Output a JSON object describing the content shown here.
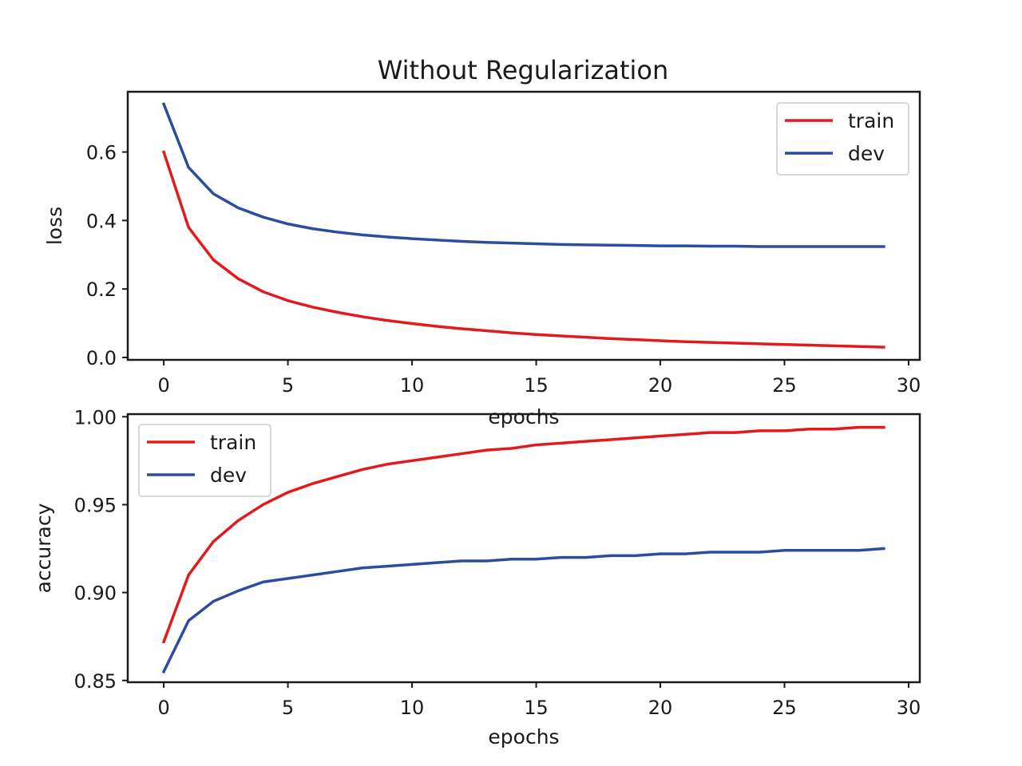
{
  "title": "Without Regularization",
  "colors": {
    "train": "#e31a1c",
    "dev": "#2c4d9e",
    "axes": "#1a1a1a",
    "background": "#ffffff"
  },
  "chart_data": [
    {
      "type": "line",
      "title": "Without Regularization",
      "xlabel": "epochs",
      "ylabel": "loss",
      "xlim": [
        -1.45,
        30.45
      ],
      "ylim": [
        -0.007,
        0.776
      ],
      "xticks": [
        0,
        5,
        10,
        15,
        20,
        25,
        30
      ],
      "xtick_labels": [
        "0",
        "5",
        "10",
        "15",
        "20",
        "25",
        "30"
      ],
      "yticks": [
        0.0,
        0.2,
        0.4,
        0.6
      ],
      "ytick_labels": [
        "0.0",
        "0.2",
        "0.4",
        "0.6"
      ],
      "legend_loc": "upper right",
      "grid": false,
      "x": [
        0,
        1,
        2,
        3,
        4,
        5,
        6,
        7,
        8,
        9,
        10,
        11,
        12,
        13,
        14,
        15,
        16,
        17,
        18,
        19,
        20,
        21,
        22,
        23,
        24,
        25,
        26,
        27,
        28,
        29
      ],
      "series": [
        {
          "name": "train",
          "color": "#e31a1c",
          "values": [
            0.6,
            0.38,
            0.285,
            0.23,
            0.192,
            0.166,
            0.147,
            0.132,
            0.119,
            0.108,
            0.099,
            0.091,
            0.084,
            0.078,
            0.072,
            0.067,
            0.063,
            0.059,
            0.055,
            0.052,
            0.049,
            0.046,
            0.044,
            0.042,
            0.04,
            0.038,
            0.036,
            0.034,
            0.032,
            0.03
          ]
        },
        {
          "name": "dev",
          "color": "#2c4d9e",
          "values": [
            0.74,
            0.555,
            0.478,
            0.437,
            0.41,
            0.39,
            0.376,
            0.366,
            0.358,
            0.352,
            0.347,
            0.343,
            0.339,
            0.336,
            0.334,
            0.332,
            0.33,
            0.329,
            0.328,
            0.327,
            0.326,
            0.326,
            0.325,
            0.325,
            0.324,
            0.324,
            0.324,
            0.324,
            0.324,
            0.324
          ]
        }
      ]
    },
    {
      "type": "line",
      "title": "",
      "xlabel": "epochs",
      "ylabel": "accuracy",
      "xlim": [
        -1.45,
        30.45
      ],
      "ylim": [
        0.849,
        1.0015
      ],
      "xticks": [
        0,
        5,
        10,
        15,
        20,
        25,
        30
      ],
      "xtick_labels": [
        "0",
        "5",
        "10",
        "15",
        "20",
        "25",
        "30"
      ],
      "yticks": [
        0.85,
        0.9,
        0.95,
        1.0
      ],
      "ytick_labels": [
        "0.85",
        "0.90",
        "0.95",
        "1.00"
      ],
      "legend_loc": "upper left",
      "grid": false,
      "x": [
        0,
        1,
        2,
        3,
        4,
        5,
        6,
        7,
        8,
        9,
        10,
        11,
        12,
        13,
        14,
        15,
        16,
        17,
        18,
        19,
        20,
        21,
        22,
        23,
        24,
        25,
        26,
        27,
        28,
        29
      ],
      "series": [
        {
          "name": "train",
          "color": "#e31a1c",
          "values": [
            0.872,
            0.91,
            0.929,
            0.941,
            0.95,
            0.957,
            0.962,
            0.966,
            0.97,
            0.973,
            0.975,
            0.977,
            0.979,
            0.981,
            0.982,
            0.984,
            0.985,
            0.986,
            0.987,
            0.988,
            0.989,
            0.99,
            0.991,
            0.991,
            0.992,
            0.992,
            0.993,
            0.993,
            0.994,
            0.994
          ]
        },
        {
          "name": "dev",
          "color": "#2c4d9e",
          "values": [
            0.855,
            0.884,
            0.895,
            0.901,
            0.906,
            0.908,
            0.91,
            0.912,
            0.914,
            0.915,
            0.916,
            0.917,
            0.918,
            0.918,
            0.919,
            0.919,
            0.92,
            0.92,
            0.921,
            0.921,
            0.922,
            0.922,
            0.923,
            0.923,
            0.923,
            0.924,
            0.924,
            0.924,
            0.924,
            0.925
          ]
        }
      ]
    }
  ]
}
